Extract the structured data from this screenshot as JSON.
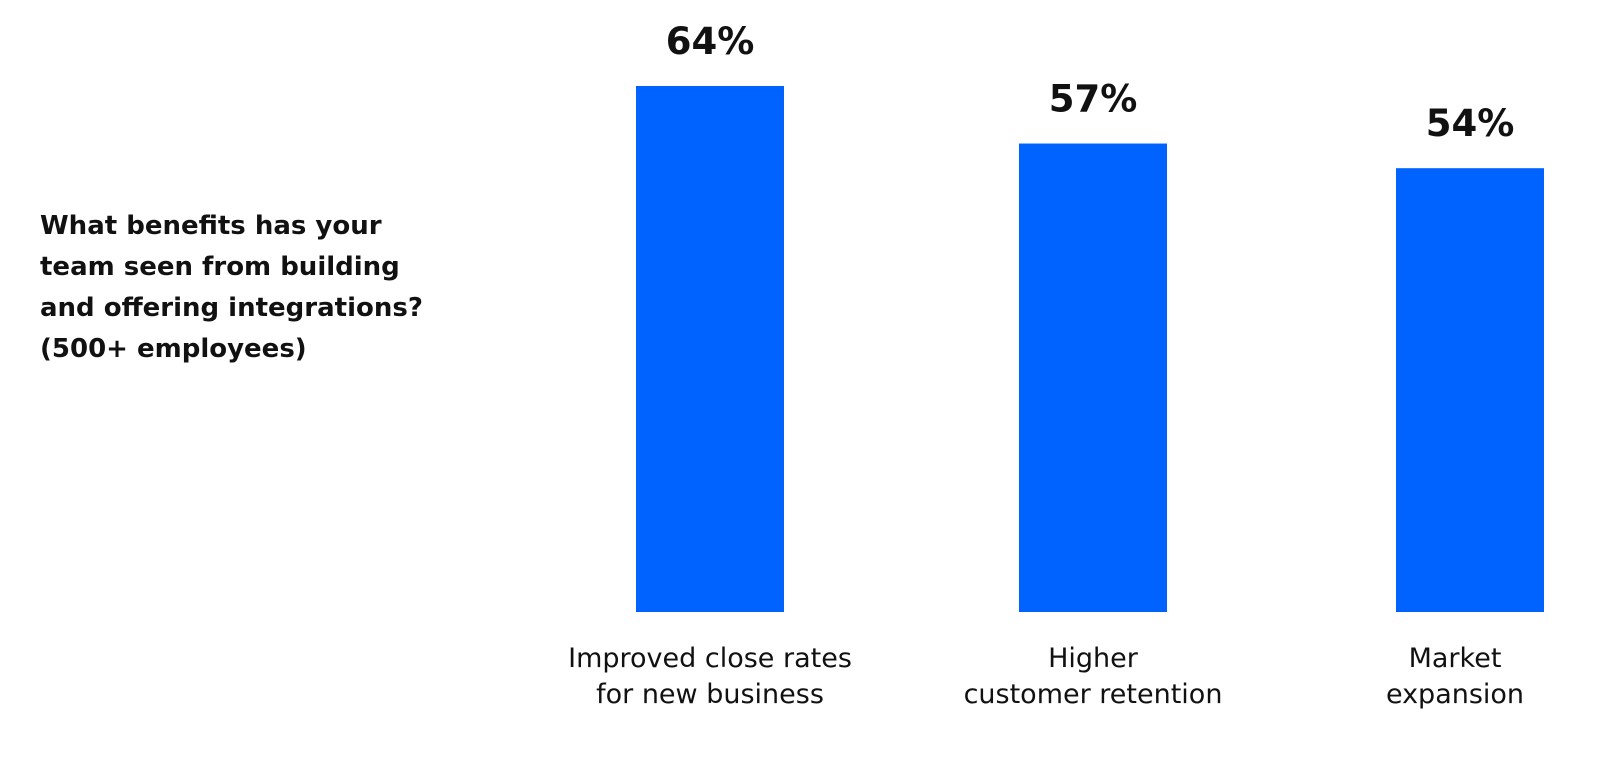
{
  "question": {
    "lines": [
      "What benefits has your",
      "team seen from building",
      "and offering integrations?",
      "(500+ employees)"
    ]
  },
  "chart_data": {
    "type": "bar",
    "categories": [
      [
        "Improved close rates",
        "for new business"
      ],
      [
        "Higher",
        "customer retention"
      ],
      [
        "Market",
        "expansion"
      ]
    ],
    "values": [
      64,
      57,
      54
    ],
    "value_labels": [
      "64%",
      "57%",
      "54%"
    ],
    "ylim": [
      0,
      64
    ],
    "bar_color": "#0062FF",
    "grid": false,
    "legend": "none"
  }
}
